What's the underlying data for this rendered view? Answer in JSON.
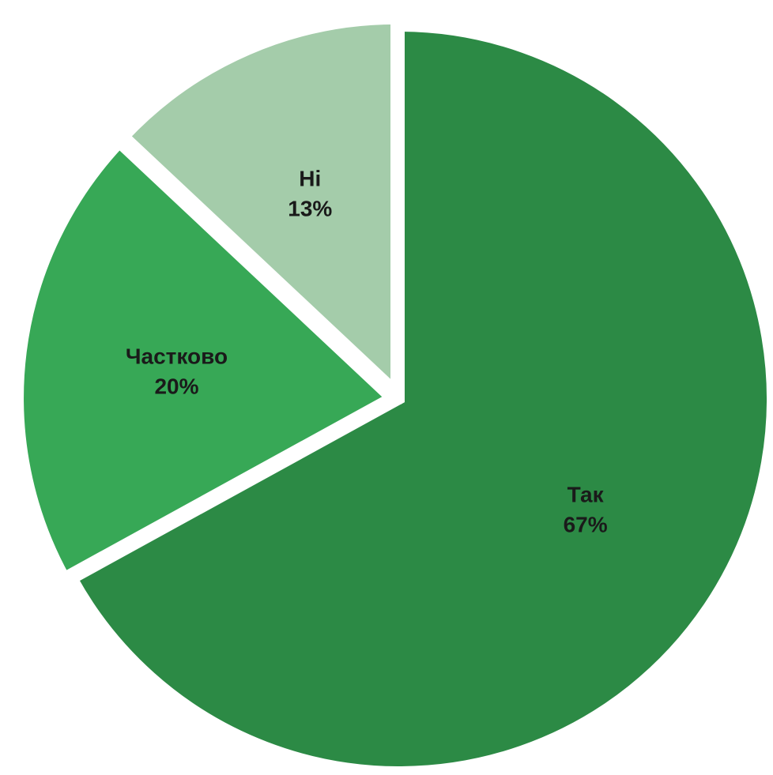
{
  "chart_data": {
    "type": "pie",
    "slices": [
      {
        "label": "Так",
        "value": 67,
        "percent_label": "67%",
        "color": "#2c8a45"
      },
      {
        "label": "Частково",
        "value": 20,
        "percent_label": "20%",
        "color": "#37a856"
      },
      {
        "label": "Ні",
        "value": 13,
        "percent_label": "13%",
        "color": "#a4ccaa"
      }
    ],
    "start_angle_deg": 0,
    "direction": "clockwise",
    "legend": "none",
    "data_labels": "inside-slice"
  }
}
